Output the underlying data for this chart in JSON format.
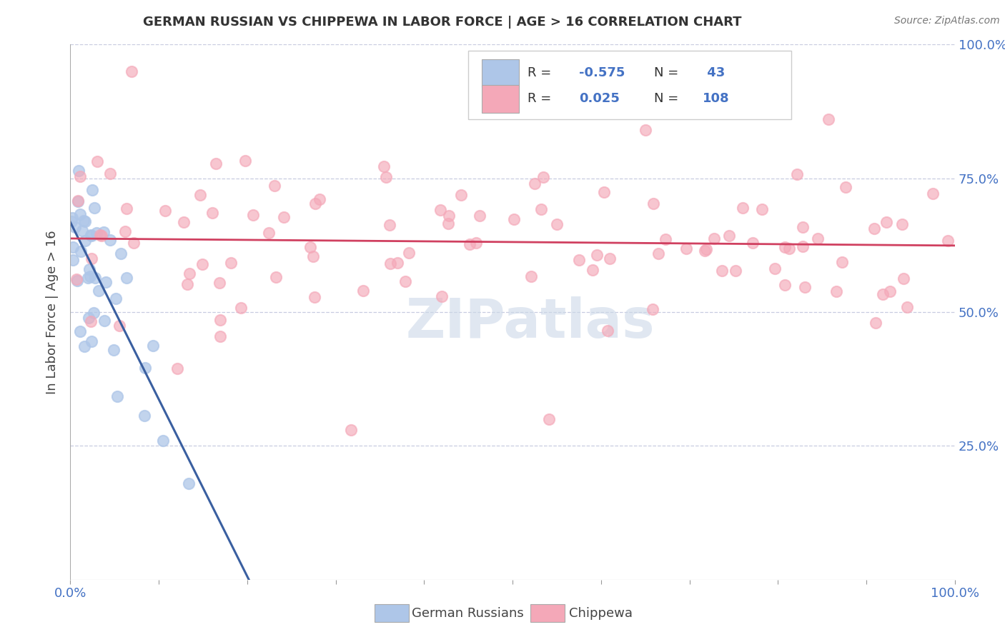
{
  "title": "GERMAN RUSSIAN VS CHIPPEWA IN LABOR FORCE | AGE > 16 CORRELATION CHART",
  "source_text": "Source: ZipAtlas.com",
  "ylabel": "In Labor Force | Age > 16",
  "legend_label1": "German Russians",
  "legend_label2": "Chippewa",
  "R1": -0.575,
  "N1": 43,
  "R2": 0.025,
  "N2": 108,
  "color_blue": "#aec6e8",
  "color_pink": "#f4a8b8",
  "color_blue_line": "#3a5fa0",
  "color_pink_line": "#d04060",
  "color_dash": "#b0b8c8",
  "background_color": "#ffffff",
  "grid_color": "#c8cce0",
  "watermark_color": "#ccd8e8",
  "xlim": [
    0.0,
    1.0
  ],
  "ylim": [
    0.0,
    1.0
  ],
  "title_fontsize": 13,
  "axis_fontsize": 13,
  "legend_fontsize": 13
}
